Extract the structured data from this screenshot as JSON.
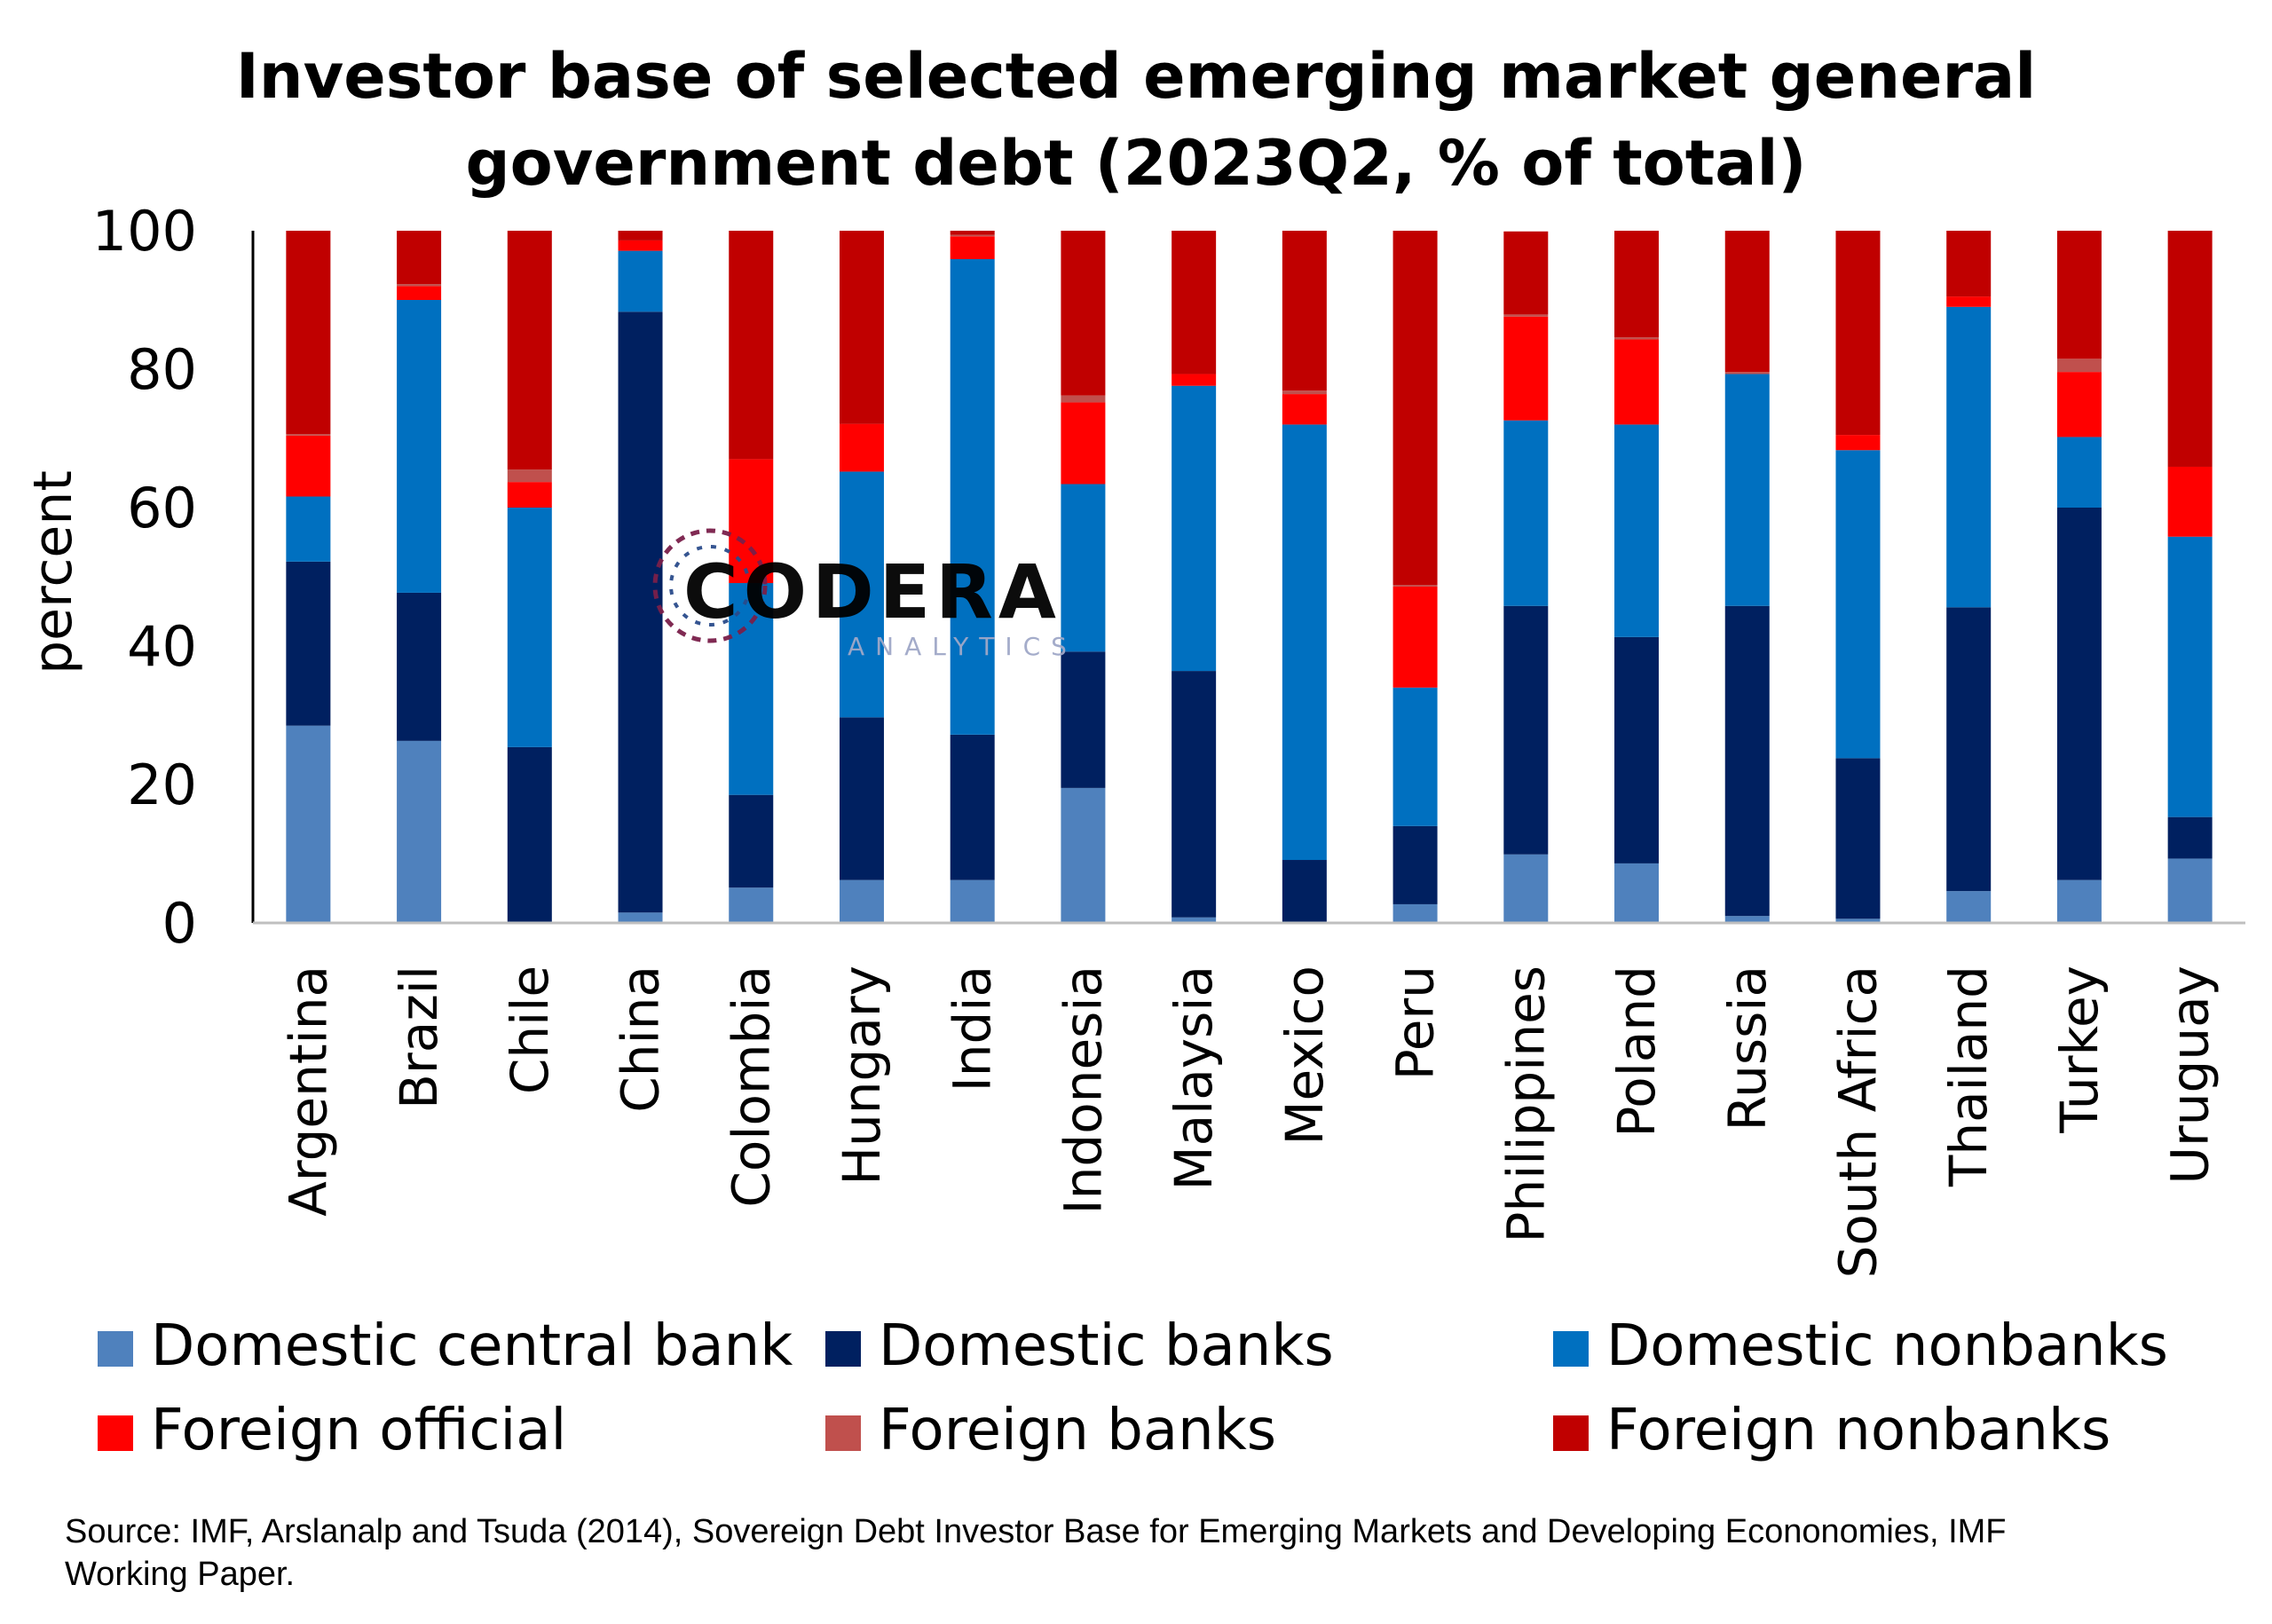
{
  "chart_data": {
    "type": "bar",
    "stacked": true,
    "title_lines": [
      "Investor base of selected emerging market general",
      "government debt (2023Q2, % of total)"
    ],
    "xlabel": "",
    "ylabel": "percent",
    "ylim": [
      0,
      100
    ],
    "yticks": [
      0,
      20,
      40,
      60,
      80,
      100
    ],
    "grid": false,
    "legend_position": "bottom",
    "categories": [
      "Argentina",
      "Brazil",
      "Chile",
      "China",
      "Colombia",
      "Hungary",
      "India",
      "Indonesia",
      "Malaysia",
      "Mexico",
      "Peru",
      "Philippines",
      "Poland",
      "Russia",
      "South Africa",
      "Thailand",
      "Turkey",
      "Uruguay"
    ],
    "series": [
      {
        "name": "Domestic central bank",
        "color": "#4f81bd",
        "values": [
          28.5,
          26.3,
          0,
          1.5,
          5.1,
          6.2,
          6.2,
          19.5,
          0.8,
          0,
          2.7,
          9.9,
          8.6,
          1.0,
          0.6,
          4.6,
          6.2,
          9.3
        ]
      },
      {
        "name": "Domestic banks",
        "color": "#002060",
        "values": [
          23.7,
          21.4,
          25.4,
          86.8,
          13.4,
          23.5,
          21.0,
          19.7,
          35.6,
          9.1,
          11.3,
          35.9,
          32.7,
          44.8,
          23.2,
          41.0,
          53.8,
          6.0
        ]
      },
      {
        "name": "Domestic nonbanks",
        "color": "#0070c0",
        "values": [
          9.4,
          42.3,
          34.6,
          8.8,
          30.6,
          35.5,
          68.7,
          24.2,
          41.2,
          62.9,
          20.0,
          26.8,
          30.7,
          33.5,
          44.5,
          43.4,
          10.2,
          40.5
        ]
      },
      {
        "name": "Foreign official",
        "color": "#ff0000",
        "values": [
          8.8,
          2.0,
          3.7,
          1.5,
          17.9,
          6.9,
          3.3,
          11.8,
          1.7,
          4.4,
          14.6,
          15.0,
          12.3,
          0,
          2.2,
          1.5,
          9.4,
          10.1
        ]
      },
      {
        "name": "Foreign banks",
        "color": "#c0504d",
        "values": [
          0.2,
          0.3,
          1.8,
          0,
          0,
          0,
          0.2,
          1.0,
          0,
          0.5,
          0.2,
          0.3,
          0.3,
          0.3,
          0,
          0,
          1.9,
          0
        ]
      },
      {
        "name": "Foreign nonbanks",
        "color": "#c00000",
        "values": [
          29.4,
          7.7,
          34.5,
          1.4,
          33.0,
          27.9,
          0.6,
          23.8,
          20.7,
          23.1,
          51.2,
          12.0,
          15.4,
          20.4,
          29.5,
          9.5,
          18.5,
          34.1
        ]
      }
    ]
  },
  "logo": {
    "main": "CODERA",
    "sub": "ANALYTICS"
  },
  "source_lines": [
    "Source: IMF, Arslanalp and Tsuda (2014), Sovereign Debt Investor Base for Emerging Markets and Developing Econonomies, IMF",
    "Working Paper."
  ]
}
